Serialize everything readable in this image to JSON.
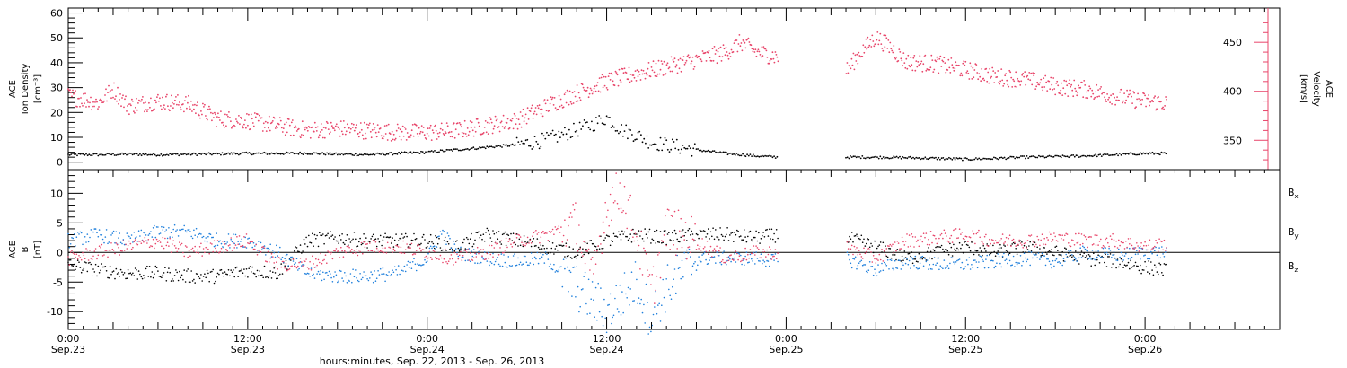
{
  "chart_data": [
    {
      "type": "scatter",
      "panel": "top",
      "ylabel_left": [
        "ACE",
        "Ion Density",
        "[cm⁻³]"
      ],
      "ylabel_right": [
        "ACE",
        "Velocity",
        "[km/s]"
      ],
      "ylim_left": [
        -3,
        62
      ],
      "yticks_left": [
        0,
        10,
        20,
        30,
        40,
        50,
        60
      ],
      "ylim_right": [
        320,
        485
      ],
      "yticks_right": [
        350,
        400,
        450
      ],
      "x_unit": "hours since 0:00 Sep.23",
      "data_gap_hours": [
        48,
        52
      ],
      "series": [
        {
          "axis": "left",
          "color": "#000000",
          "points": [
            [
              0,
              3
            ],
            [
              2,
              3
            ],
            [
              4,
              3.2
            ],
            [
              6,
              3
            ],
            [
              8,
              3.2
            ],
            [
              10,
              3.3
            ],
            [
              12,
              3.5
            ],
            [
              14,
              3.5
            ],
            [
              16,
              3.6
            ],
            [
              18,
              3.2
            ],
            [
              20,
              3
            ],
            [
              22,
              3.5
            ],
            [
              24,
              4
            ],
            [
              26,
              5
            ],
            [
              28,
              6
            ],
            [
              30,
              7
            ],
            [
              32,
              9
            ],
            [
              34,
              13
            ],
            [
              35,
              15
            ],
            [
              36,
              18
            ],
            [
              37,
              13
            ],
            [
              38,
              11
            ],
            [
              39,
              8
            ],
            [
              40,
              7
            ],
            [
              42,
              5
            ],
            [
              44,
              3.5
            ],
            [
              46,
              2.5
            ],
            [
              47.5,
              2
            ],
            [
              52,
              2
            ],
            [
              54,
              2
            ],
            [
              56,
              1.8
            ],
            [
              58,
              1.5
            ],
            [
              60,
              1.2
            ],
            [
              62,
              1.5
            ],
            [
              64,
              2
            ],
            [
              66,
              2.2
            ],
            [
              68,
              2.5
            ],
            [
              70,
              3
            ],
            [
              72,
              3.5
            ],
            [
              73.5,
              3.5
            ]
          ]
        },
        {
          "axis": "right",
          "color": "#e8456a",
          "points": [
            [
              0,
              395
            ],
            [
              1,
              392
            ],
            [
              2,
              388
            ],
            [
              3,
              402
            ],
            [
              4,
              385
            ],
            [
              6,
              390
            ],
            [
              8,
              387
            ],
            [
              10,
              372
            ],
            [
              12,
              370
            ],
            [
              14,
              365
            ],
            [
              16,
              360
            ],
            [
              18,
              362
            ],
            [
              20,
              360
            ],
            [
              22,
              358
            ],
            [
              24,
              358
            ],
            [
              26,
              360
            ],
            [
              28,
              365
            ],
            [
              30,
              370
            ],
            [
              32,
              385
            ],
            [
              34,
              398
            ],
            [
              36,
              410
            ],
            [
              38,
              418
            ],
            [
              40,
              425
            ],
            [
              42,
              432
            ],
            [
              44,
              440
            ],
            [
              45,
              450
            ],
            [
              46,
              440
            ],
            [
              47.5,
              435
            ],
            [
              52,
              420
            ],
            [
              53,
              440
            ],
            [
              54,
              455
            ],
            [
              55,
              445
            ],
            [
              56,
              430
            ],
            [
              58,
              428
            ],
            [
              60,
              422
            ],
            [
              62,
              415
            ],
            [
              64,
              412
            ],
            [
              66,
              405
            ],
            [
              68,
              402
            ],
            [
              70,
              395
            ],
            [
              72,
              390
            ],
            [
              73.5,
              388
            ]
          ]
        }
      ]
    },
    {
      "type": "scatter",
      "panel": "bottom",
      "ylabel": [
        "ACE",
        "B",
        "[nT]"
      ],
      "ylim": [
        -13,
        14
      ],
      "yticks": [
        -10,
        -5,
        0,
        5,
        10
      ],
      "zero_line": true,
      "x_unit": "hours since 0:00 Sep.23",
      "data_gap_hours": [
        48,
        52
      ],
      "series": [
        {
          "name": "Bx",
          "color": "#000000",
          "points": [
            [
              0,
              -2
            ],
            [
              2,
              -3
            ],
            [
              4,
              -3.5
            ],
            [
              6,
              -3.5
            ],
            [
              8,
              -4
            ],
            [
              10,
              -4
            ],
            [
              12,
              -3
            ],
            [
              14,
              -3.5
            ],
            [
              16,
              2
            ],
            [
              18,
              2.5
            ],
            [
              20,
              2
            ],
            [
              22,
              2
            ],
            [
              24,
              2
            ],
            [
              26,
              1
            ],
            [
              28,
              3
            ],
            [
              30,
              2
            ],
            [
              32,
              1
            ],
            [
              34,
              0
            ],
            [
              36,
              2
            ],
            [
              38,
              3
            ],
            [
              40,
              2.5
            ],
            [
              42,
              3
            ],
            [
              44,
              3
            ],
            [
              46,
              2.5
            ],
            [
              47.5,
              3
            ],
            [
              52,
              2.5
            ],
            [
              54,
              1
            ],
            [
              56,
              -1
            ],
            [
              58,
              0
            ],
            [
              60,
              1
            ],
            [
              62,
              0
            ],
            [
              64,
              1
            ],
            [
              66,
              0
            ],
            [
              68,
              -1
            ],
            [
              70,
              -1.5
            ],
            [
              72,
              -2.5
            ],
            [
              73.5,
              -3
            ]
          ]
        },
        {
          "name": "By",
          "color": "#1e7fdc",
          "points": [
            [
              0,
              2
            ],
            [
              2,
              3
            ],
            [
              4,
              2
            ],
            [
              6,
              3.5
            ],
            [
              8,
              3.5
            ],
            [
              10,
              2
            ],
            [
              12,
              2
            ],
            [
              14,
              0
            ],
            [
              16,
              -3.5
            ],
            [
              18,
              -4
            ],
            [
              20,
              -4
            ],
            [
              22,
              -3.5
            ],
            [
              24,
              -1
            ],
            [
              25,
              3.5
            ],
            [
              26,
              0
            ],
            [
              28,
              -1
            ],
            [
              30,
              -1.5
            ],
            [
              32,
              -1
            ],
            [
              34,
              -6
            ],
            [
              36,
              -10
            ],
            [
              38,
              -5
            ],
            [
              39,
              -11
            ],
            [
              40,
              -6
            ],
            [
              42,
              -1
            ],
            [
              44,
              -1
            ],
            [
              46,
              -1
            ],
            [
              47.5,
              -1.5
            ],
            [
              52,
              -1
            ],
            [
              54,
              -3
            ],
            [
              56,
              -1.5
            ],
            [
              58,
              -2
            ],
            [
              60,
              -2
            ],
            [
              62,
              -1.5
            ],
            [
              64,
              -1
            ],
            [
              66,
              -1.5
            ],
            [
              68,
              0
            ],
            [
              70,
              -0.5
            ],
            [
              72,
              0
            ],
            [
              73.5,
              0
            ]
          ]
        },
        {
          "name": "Bz",
          "color": "#e8456a",
          "points": [
            [
              0,
              -1
            ],
            [
              2,
              0
            ],
            [
              4,
              1
            ],
            [
              6,
              2
            ],
            [
              8,
              0
            ],
            [
              10,
              1
            ],
            [
              12,
              2
            ],
            [
              14,
              -2
            ],
            [
              16,
              -2
            ],
            [
              18,
              0
            ],
            [
              20,
              1
            ],
            [
              22,
              1
            ],
            [
              24,
              0
            ],
            [
              26,
              -1
            ],
            [
              28,
              0
            ],
            [
              30,
              2
            ],
            [
              32,
              3
            ],
            [
              34,
              5
            ],
            [
              35,
              -5
            ],
            [
              36,
              8
            ],
            [
              37,
              10.5
            ],
            [
              38,
              3
            ],
            [
              39,
              -7
            ],
            [
              40,
              4
            ],
            [
              42,
              2
            ],
            [
              44,
              -1
            ],
            [
              46,
              0
            ],
            [
              47.5,
              0
            ],
            [
              52,
              1
            ],
            [
              54,
              -1
            ],
            [
              56,
              2
            ],
            [
              58,
              2.5
            ],
            [
              60,
              3
            ],
            [
              62,
              2
            ],
            [
              64,
              2
            ],
            [
              66,
              2.5
            ],
            [
              68,
              2
            ],
            [
              70,
              2
            ],
            [
              72,
              1
            ],
            [
              73.5,
              1.5
            ]
          ]
        }
      ]
    }
  ],
  "x_axis": {
    "range_hours": [
      0,
      81
    ],
    "major_ticks": [
      {
        "hour": 0,
        "time": "0:00",
        "date": "Sep.23"
      },
      {
        "hour": 12,
        "time": "12:00",
        "date": "Sep.23"
      },
      {
        "hour": 24,
        "time": "0:00",
        "date": "Sep.24"
      },
      {
        "hour": 36,
        "time": "12:00",
        "date": "Sep.24"
      },
      {
        "hour": 48,
        "time": "0:00",
        "date": "Sep.25"
      },
      {
        "hour": 60,
        "time": "12:00",
        "date": "Sep.25"
      },
      {
        "hour": 72,
        "time": "0:00",
        "date": "Sep.26"
      }
    ],
    "label": "hours:minutes, Sep. 22, 2013 - Sep. 26, 2013"
  },
  "legend": [
    {
      "base": "B",
      "sub": "x",
      "color": "#000000"
    },
    {
      "base": "B",
      "sub": "y",
      "color": "#1e7fdc"
    },
    {
      "base": "B",
      "sub": "z",
      "color": "#e8456a"
    }
  ]
}
